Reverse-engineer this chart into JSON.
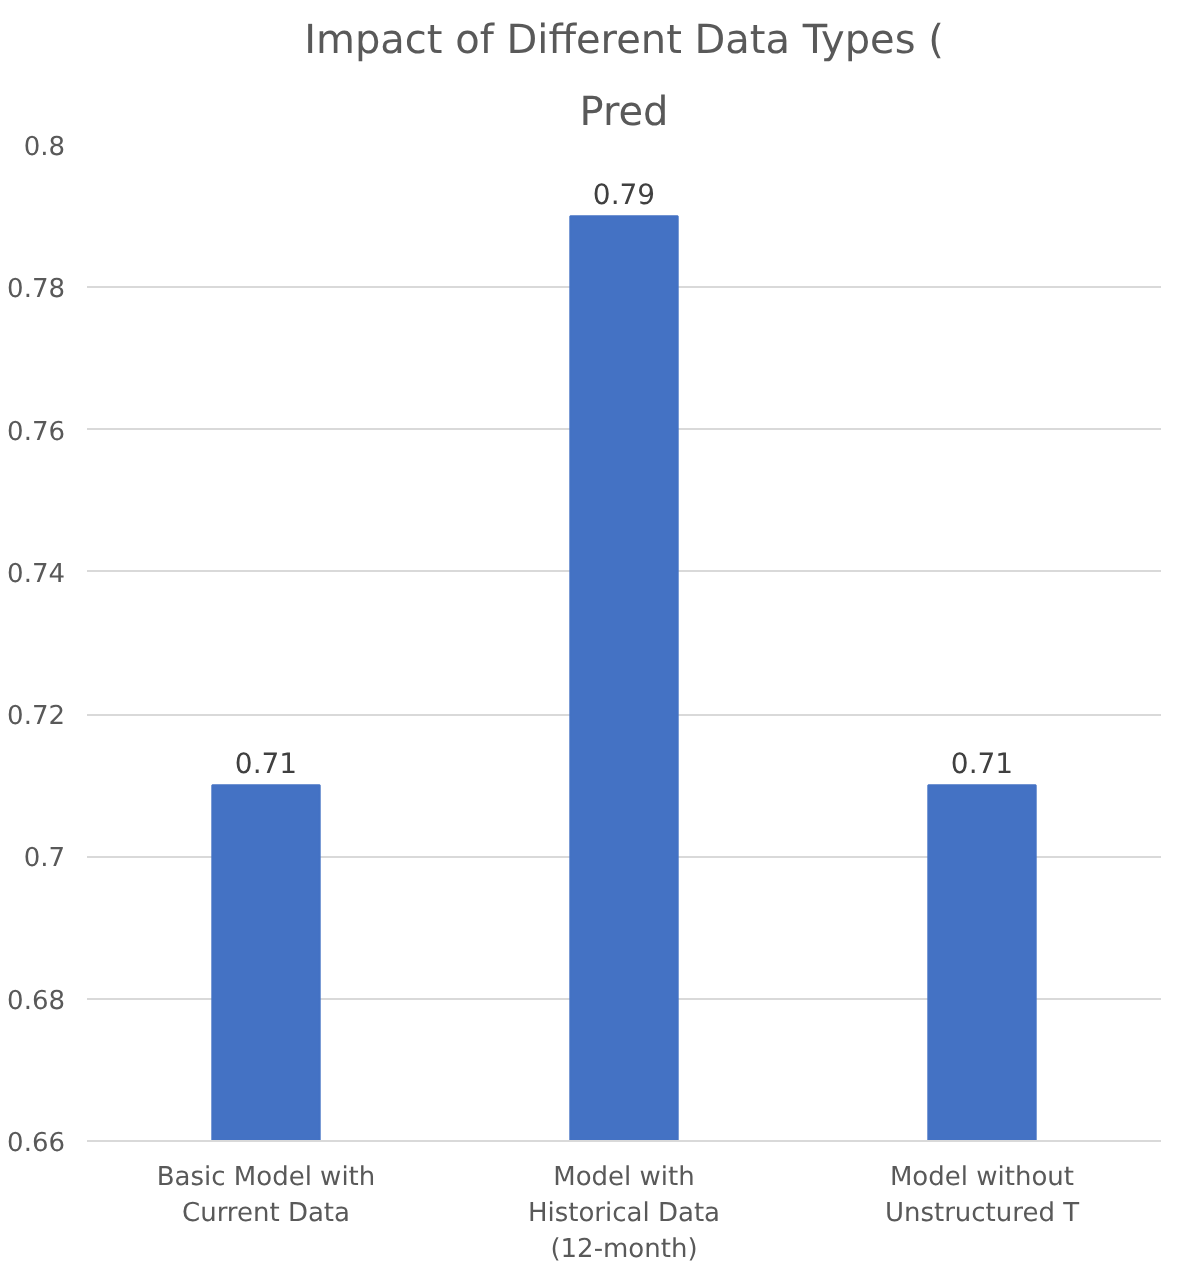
{
  "chart_data": {
    "type": "bar",
    "title": "Impact of Different Data Types (",
    "subtitle": "Pred",
    "categories": [
      "Basic Model with Current Data",
      "Model with Historical Data (12-month)",
      "Model without Unstructured T"
    ],
    "values": [
      0.71,
      0.79,
      0.71
    ],
    "color": "#4472c4",
    "ylim": [
      0.66,
      0.8
    ],
    "yticks": [
      0.66,
      0.68,
      0.7,
      0.72,
      0.74,
      0.76,
      0.78,
      0.8
    ],
    "grid": "y",
    "data_labels": true
  }
}
